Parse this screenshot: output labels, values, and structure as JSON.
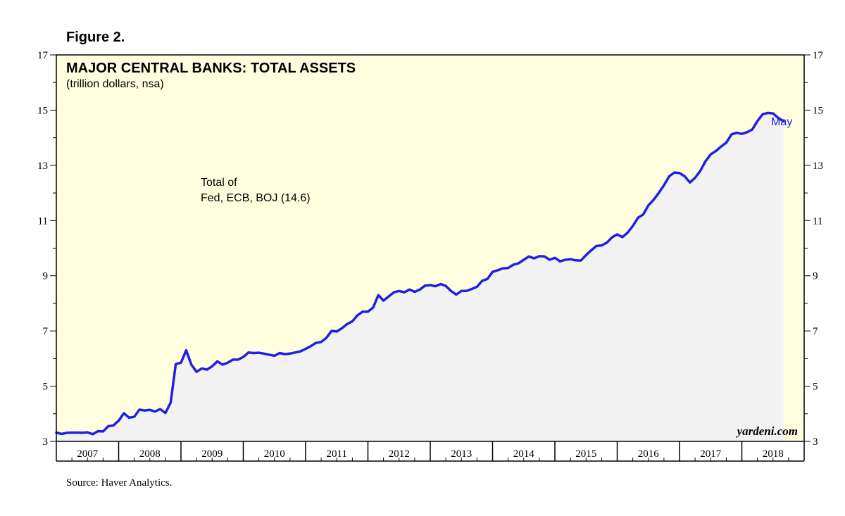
{
  "figure_label": "Figure 2.",
  "source": "Source: Haver Analytics.",
  "watermark": "yardeni.com",
  "colors": {
    "plot_bg": "#ffffe0",
    "area_fill": "#f2f2f2",
    "line": "#2020e0",
    "axis": "#000000"
  },
  "chart_data": {
    "type": "area",
    "title": "MAJOR CENTRAL BANKS: TOTAL ASSETS",
    "subtitle": "(trillion dollars, nsa)",
    "annotation": [
      "Total of",
      "Fed, ECB, BOJ (14.6)"
    ],
    "end_label": "May",
    "ylim": [
      3,
      17
    ],
    "yticks": [
      3,
      5,
      7,
      9,
      11,
      13,
      15,
      17
    ],
    "x_years": [
      "2007",
      "2008",
      "2009",
      "2010",
      "2011",
      "2012",
      "2013",
      "2014",
      "2015",
      "2016",
      "2017",
      "2018"
    ],
    "xlim_months": [
      0,
      144
    ],
    "grid": false,
    "series": [
      {
        "month": [
          0,
          1,
          2,
          3,
          4,
          5,
          6,
          7,
          8,
          9,
          10,
          11,
          12,
          13,
          14,
          15,
          16,
          17,
          18,
          19,
          20,
          21,
          22,
          23,
          24,
          25,
          26,
          27,
          28,
          29,
          30,
          31,
          32,
          33,
          34,
          35,
          36,
          37,
          38,
          39,
          40,
          41,
          42,
          43,
          44,
          45,
          46,
          47,
          48,
          49,
          50,
          51,
          52,
          53,
          54,
          55,
          56,
          57,
          58,
          59,
          60,
          61,
          62,
          63,
          64,
          65,
          66,
          67,
          68,
          69,
          70,
          71,
          72,
          73,
          74,
          75,
          76,
          77,
          78,
          79,
          80,
          81,
          82,
          83,
          84,
          85,
          86,
          87,
          88,
          89,
          90,
          91,
          92,
          93,
          94,
          95,
          96,
          97,
          98,
          99,
          100,
          101,
          102,
          103,
          104,
          105,
          106,
          107,
          108,
          109,
          110,
          111,
          112,
          113,
          114,
          115,
          116,
          117,
          118,
          119,
          120,
          121,
          122,
          123,
          124,
          125,
          126,
          127,
          128,
          129,
          130,
          131,
          132,
          133,
          134,
          135,
          136,
          137,
          138,
          139,
          140
        ],
        "values": [
          3.32,
          3.27,
          3.31,
          3.32,
          3.32,
          3.31,
          3.33,
          3.26,
          3.37,
          3.36,
          3.55,
          3.58,
          3.75,
          4.02,
          3.86,
          3.89,
          4.15,
          4.12,
          4.14,
          4.08,
          4.17,
          4.03,
          4.4,
          5.8,
          5.85,
          6.3,
          5.78,
          5.52,
          5.64,
          5.6,
          5.72,
          5.9,
          5.78,
          5.85,
          5.96,
          5.96,
          6.06,
          6.22,
          6.2,
          6.21,
          6.18,
          6.14,
          6.1,
          6.2,
          6.16,
          6.18,
          6.22,
          6.26,
          6.35,
          6.45,
          6.57,
          6.6,
          6.75,
          7.0,
          6.98,
          7.1,
          7.25,
          7.35,
          7.57,
          7.7,
          7.7,
          7.85,
          8.3,
          8.1,
          8.25,
          8.4,
          8.45,
          8.4,
          8.5,
          8.42,
          8.5,
          8.64,
          8.66,
          8.62,
          8.7,
          8.63,
          8.45,
          8.32,
          8.45,
          8.45,
          8.52,
          8.6,
          8.82,
          8.88,
          9.14,
          9.2,
          9.27,
          9.28,
          9.4,
          9.45,
          9.58,
          9.7,
          9.63,
          9.71,
          9.7,
          9.58,
          9.65,
          9.52,
          9.58,
          9.6,
          9.56,
          9.55,
          9.75,
          9.92,
          10.08,
          10.1,
          10.2,
          10.39,
          10.5,
          10.4,
          10.56,
          10.8,
          11.1,
          11.22,
          11.55,
          11.75,
          12.0,
          12.28,
          12.6,
          12.74,
          12.72,
          12.6,
          12.38,
          12.55,
          12.8,
          13.15,
          13.4,
          13.52,
          13.68,
          13.82,
          14.12,
          14.18,
          14.14,
          14.2,
          14.3,
          14.6,
          14.85,
          14.9,
          14.88,
          14.72,
          14.6
        ]
      }
    ]
  }
}
